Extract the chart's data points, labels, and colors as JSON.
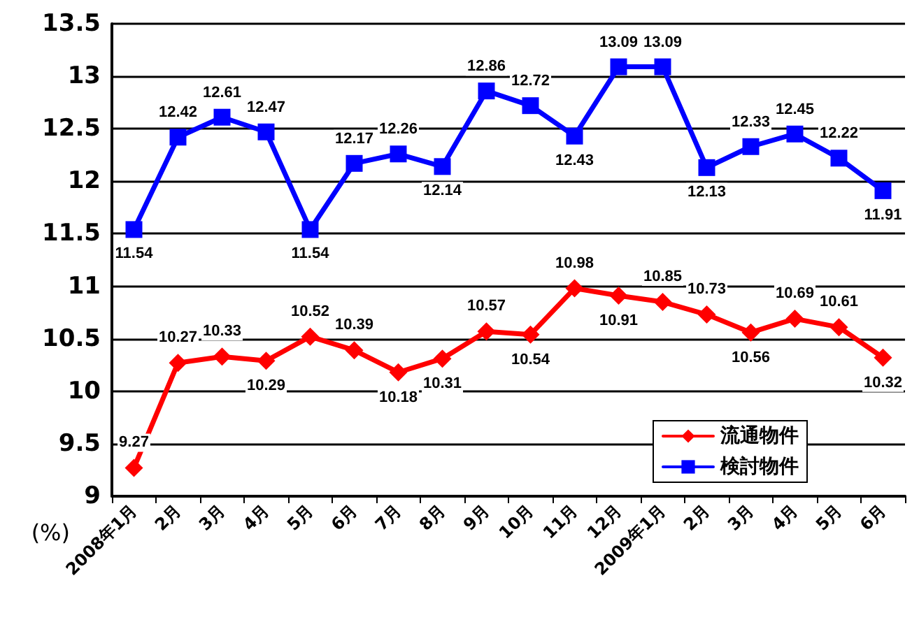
{
  "chart_data": {
    "type": "line",
    "ylabel": "(%)",
    "categories": [
      "2008年1月",
      "2月",
      "3月",
      "4月",
      "5月",
      "6月",
      "7月",
      "8月",
      "9月",
      "10月",
      "11月",
      "12月",
      "2009年1月",
      "2月",
      "3月",
      "4月",
      "5月",
      "6月"
    ],
    "series": [
      {
        "name": "流通物件",
        "color": "#ff0000",
        "marker": "diamond",
        "values": [
          9.27,
          10.27,
          10.33,
          10.29,
          10.52,
          10.39,
          10.18,
          10.31,
          10.57,
          10.54,
          10.98,
          10.91,
          10.85,
          10.73,
          10.56,
          10.69,
          10.61,
          10.32
        ]
      },
      {
        "name": "検討物件",
        "color": "#0000ff",
        "marker": "square",
        "values": [
          11.54,
          12.42,
          12.61,
          12.47,
          11.54,
          12.17,
          12.26,
          12.14,
          12.86,
          12.72,
          12.43,
          13.09,
          13.09,
          12.13,
          12.33,
          12.45,
          12.22,
          11.91
        ]
      }
    ],
    "ylim": [
      9,
      13.5
    ],
    "yticks": [
      9,
      9.5,
      10,
      10.5,
      11,
      11.5,
      12,
      12.5,
      13,
      13.5
    ],
    "grid": "y",
    "legend": "bottom right",
    "data_labels": true,
    "line_style": "solid"
  }
}
